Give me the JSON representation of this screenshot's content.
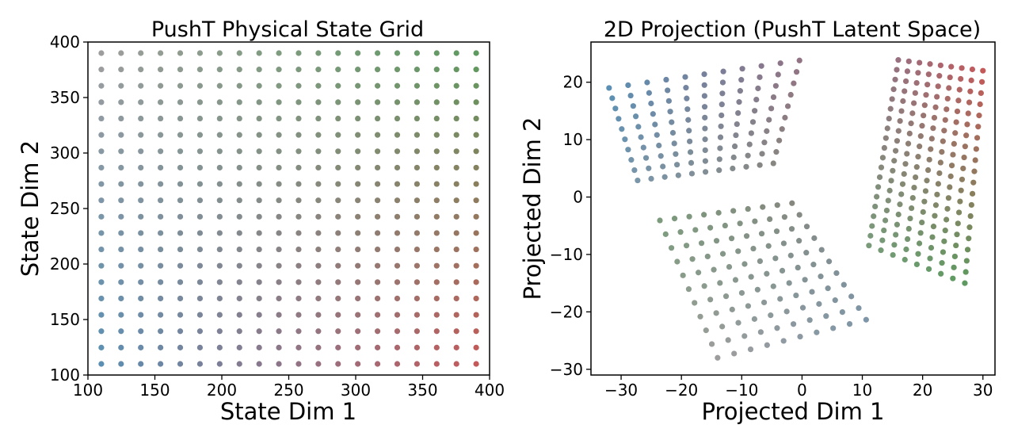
{
  "chart_data": [
    {
      "type": "scatter",
      "title": "PushT Physical State Grid",
      "xlabel": "State Dim 1",
      "ylabel": "State Dim 2",
      "xlim": [
        100,
        400
      ],
      "ylim": [
        100,
        400
      ],
      "xticks": [
        100,
        150,
        200,
        250,
        300,
        350,
        400
      ],
      "yticks": [
        100,
        150,
        200,
        250,
        300,
        350,
        400
      ],
      "xtick_labels": [
        "100",
        "150",
        "200",
        "250",
        "300",
        "350",
        "400"
      ],
      "ytick_labels": [
        "100",
        "150",
        "200",
        "250",
        "300",
        "350",
        "400"
      ],
      "grid": false,
      "legend": "none",
      "points": "20x20 regular grid: x from 110 to 390 step 14.74, y from 110 to 390 step 14.74; colour gradient blue (low x, low y) → red (high x, low y) → green (high x, high y) → grey (low x, high y)",
      "grid_x": {
        "start": 110,
        "end": 390,
        "count": 20
      },
      "grid_y": {
        "start": 110,
        "end": 390,
        "count": 20
      },
      "corner_colors": {
        "low_x_low_y": "#5b8fb3",
        "high_x_low_y": "#c4595a",
        "low_x_high_y": "#9d9d9d",
        "high_x_high_y": "#5e9a60"
      }
    },
    {
      "type": "scatter",
      "title": "2D Projection (PushT Latent Space)",
      "xlabel": "Projected Dim 1",
      "ylabel": "Projected Dim 2",
      "xlim": [
        -35,
        32
      ],
      "ylim": [
        -31,
        27
      ],
      "xticks": [
        -30,
        -20,
        -10,
        0,
        10,
        20,
        30
      ],
      "yticks": [
        -30,
        -20,
        -10,
        0,
        10,
        20
      ],
      "xtick_labels": [
        "−30",
        "−20",
        "−10",
        "0",
        "10",
        "20",
        "30"
      ],
      "ytick_labels": [
        "−30",
        "−20",
        "−10",
        "0",
        "10",
        "20"
      ],
      "grid": false,
      "legend": "none",
      "points": "projection of the same 20x20 grid, folded into three lobes: top-left lobe (grey), right lobe (blue at top, red at bottom), bottom lobe (green at bottom-left, red at right)",
      "anchors": {
        "low_x_low_y": [
          -25,
          24
        ],
        "high_x_low_y": [
          -14,
          -28
        ],
        "low_x_high_y": [
          1,
          24
        ],
        "high_x_high_y": [
          30,
          -15
        ],
        "mid": [
          0,
          -1
        ]
      },
      "corner_colors": {
        "low_x_low_y": "#9d9d9d",
        "high_x_low_y": "#5e9a60",
        "low_x_high_y": "#5b8fb3",
        "high_x_high_y": "#c4595a"
      }
    }
  ]
}
